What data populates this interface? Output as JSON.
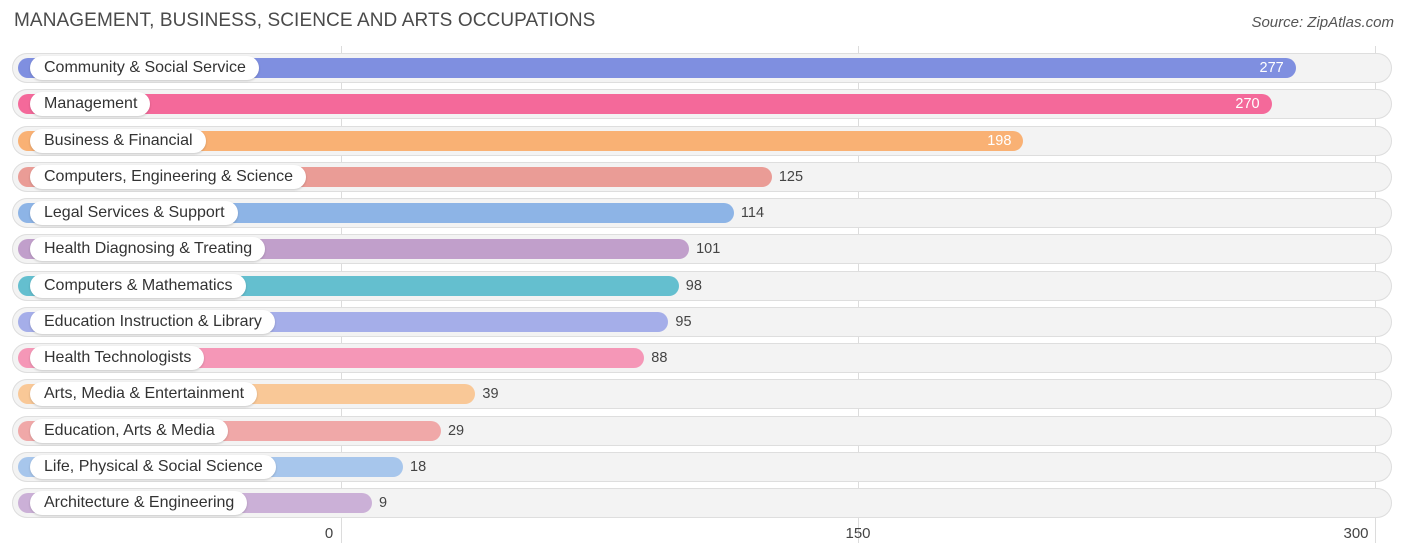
{
  "chart_data": {
    "type": "bar",
    "orientation": "horizontal",
    "title": "MANAGEMENT, BUSINESS, SCIENCE AND ARTS OCCUPATIONS",
    "source": "Source: ZipAtlas.com",
    "xlim": [
      0,
      300
    ],
    "xticks": [
      0,
      150,
      300
    ],
    "xtick_labels": [
      "0",
      "150",
      "300"
    ],
    "grid": true,
    "categories": [
      "Community & Social Service",
      "Management",
      "Business & Financial",
      "Computers, Engineering & Science",
      "Legal Services & Support",
      "Health Diagnosing & Treating",
      "Computers & Mathematics",
      "Education Instruction & Library",
      "Health Technologists",
      "Arts, Media & Entertainment",
      "Education, Arts & Media",
      "Life, Physical & Social Science",
      "Architecture & Engineering"
    ],
    "values": [
      277,
      270,
      198,
      125,
      114,
      101,
      98,
      95,
      88,
      39,
      29,
      18,
      9
    ],
    "colors": [
      "#7f8fe0",
      "#f4699a",
      "#f9b174",
      "#ea9c96",
      "#8db4e6",
      "#c19fcb",
      "#64bfcf",
      "#a5aee9",
      "#f597b7",
      "#f9c897",
      "#f0a8a8",
      "#a7c6ec",
      "#cbb0d7"
    ]
  }
}
